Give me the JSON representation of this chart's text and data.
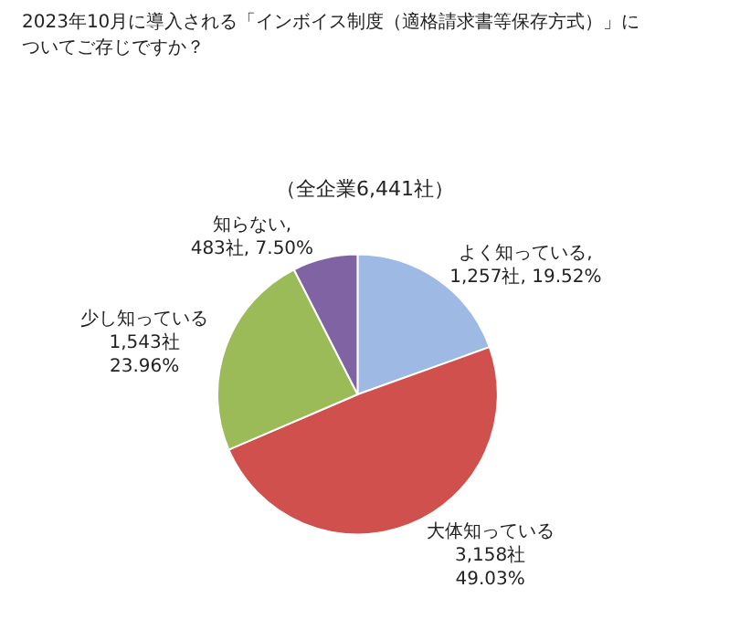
{
  "chart_data": {
    "type": "pie",
    "title": "2023年10月に導入される「インボイス制度（適格請求書等保存方式）」についてご存じですか？",
    "subtitle": "（全企業6,441社）",
    "categories": [
      "よく知っている",
      "大体知っている",
      "少し知っている",
      "知らない"
    ],
    "values": [
      1257,
      3158,
      1543,
      483
    ],
    "value_labels": [
      ",\n1,257社, 19.52%",
      "\n3,158社\n49.03%",
      "\n1,543社\n23.96%",
      ",\n483社, 7.50%"
    ],
    "colors": [
      "#9db9e4",
      "#d0504d",
      "#9bbb59",
      "#7f63a2"
    ],
    "legend": false
  }
}
